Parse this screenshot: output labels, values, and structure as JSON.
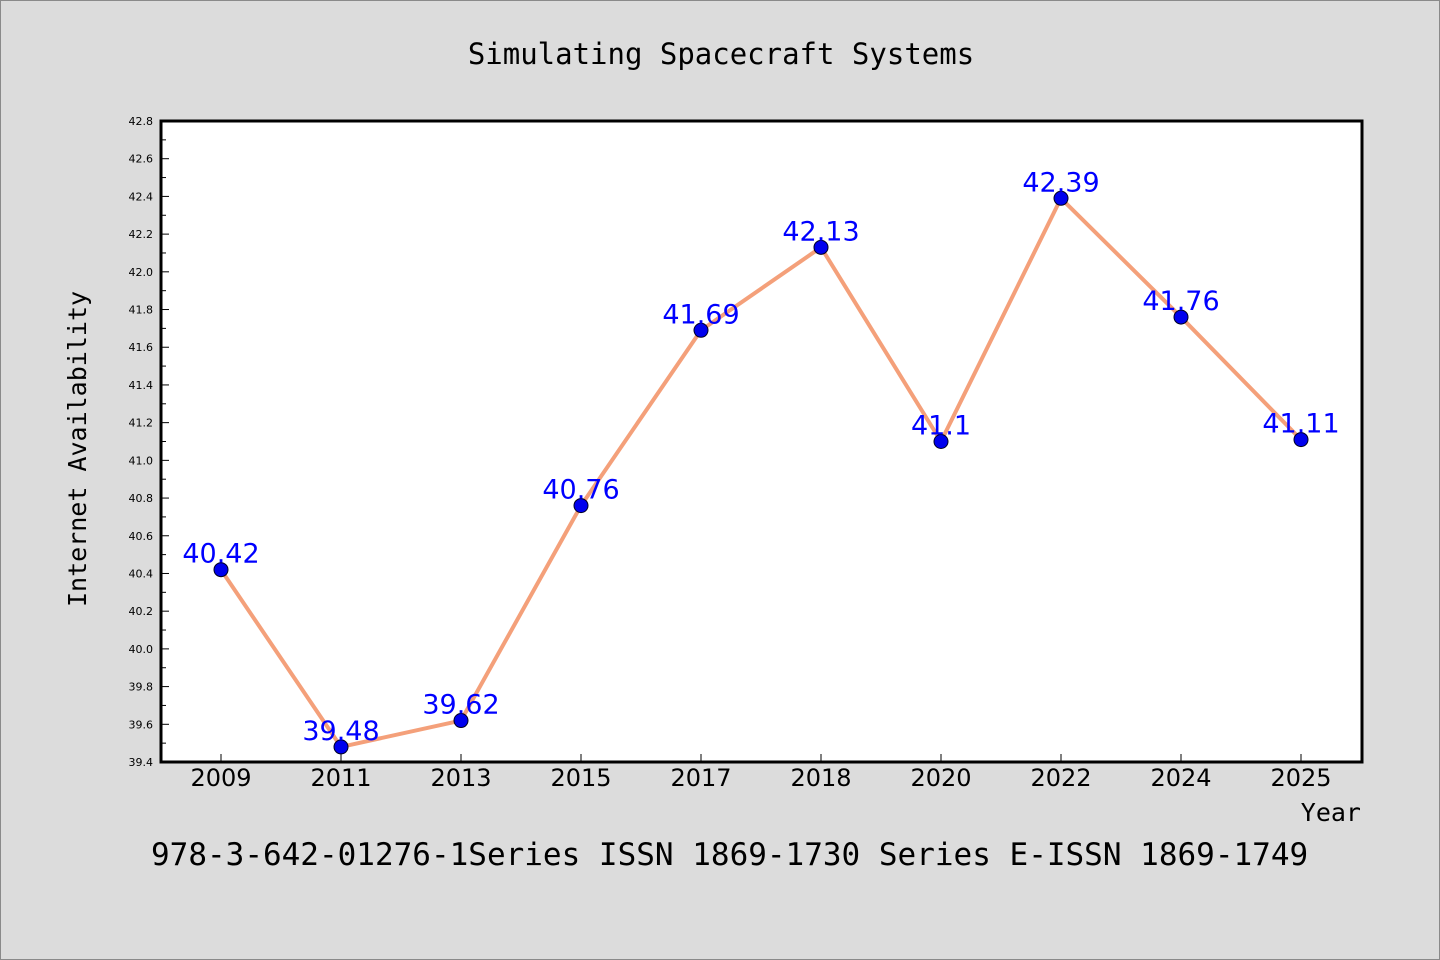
{
  "chart_data": {
    "type": "line",
    "title": "Simulating Spacecraft Systems",
    "xlabel": "Year",
    "ylabel": "Internet Availability",
    "footnote": "978-3-642-01276-1Series ISSN 1869-1730 Series E-ISSN 1869-1749",
    "categories": [
      "2009",
      "2011",
      "2013",
      "2015",
      "2017",
      "2018",
      "2020",
      "2022",
      "2024",
      "2025"
    ],
    "series": [
      {
        "values": [
          40.42,
          39.48,
          39.62,
          40.76,
          41.69,
          42.13,
          41.1,
          42.39,
          41.76,
          41.11
        ],
        "data_labels": [
          "40.42",
          "39.48",
          "39.62",
          "40.76",
          "41.69",
          "42.13",
          "41.1",
          "42.39",
          "41.76",
          "41.11"
        ],
        "line_color": "#f4a07a",
        "marker_color": "#0000ee",
        "label_color": "#0000ff"
      }
    ],
    "ylim": [
      39.4,
      42.8
    ],
    "yticks": [
      "39.4",
      "39.6",
      "39.8",
      "40.0",
      "40.2",
      "40.4",
      "40.6",
      "40.8",
      "41.0",
      "41.2",
      "41.4",
      "41.6",
      "41.8",
      "42.0",
      "42.2",
      "42.4",
      "42.6",
      "42.8"
    ],
    "grid": false,
    "legend": "none",
    "background_color": "#dcdcdc",
    "plot_background_color": "#ffffff"
  }
}
